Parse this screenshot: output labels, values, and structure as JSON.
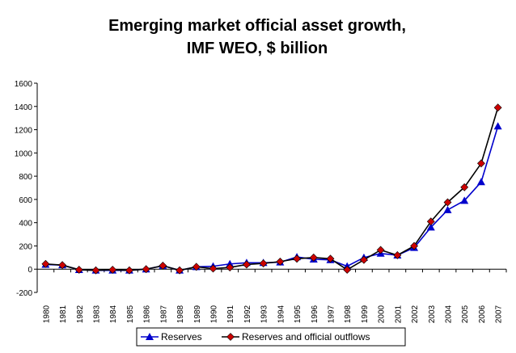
{
  "chart_data": {
    "type": "line",
    "title": [
      "Emerging market official asset growth,",
      "IMF WEO, $ billion"
    ],
    "xlabel": "",
    "ylabel": "",
    "ylim": [
      -200,
      1600
    ],
    "yticks": [
      -200,
      0,
      200,
      400,
      600,
      800,
      1000,
      1200,
      1400,
      1600
    ],
    "grid": false,
    "legend_position": "bottom",
    "categories": [
      "1980",
      "1981",
      "1982",
      "1983",
      "1984",
      "1985",
      "1986",
      "1987",
      "1988",
      "1989",
      "1990",
      "1991",
      "1992",
      "1993",
      "1994",
      "1995",
      "1996",
      "1997",
      "1998",
      "1999",
      "2000",
      "2001",
      "2002",
      "2003",
      "2004",
      "2005",
      "2006",
      "2007"
    ],
    "series": [
      {
        "name": "Reserves",
        "color": "#0000cc",
        "marker": "triangle",
        "values": [
          40,
          35,
          -5,
          -10,
          -10,
          -10,
          0,
          30,
          -10,
          20,
          25,
          45,
          55,
          55,
          60,
          105,
          85,
          80,
          25,
          100,
          135,
          120,
          185,
          360,
          510,
          590,
          750,
          1230
        ]
      },
      {
        "name": "Reserves and official outflows",
        "color": "#cc0000",
        "marker": "diamond",
        "values": [
          45,
          35,
          -5,
          -10,
          -5,
          -10,
          0,
          30,
          -10,
          20,
          5,
          15,
          40,
          50,
          65,
          90,
          100,
          90,
          -5,
          80,
          165,
          120,
          200,
          410,
          575,
          705,
          910,
          1390
        ]
      }
    ]
  }
}
